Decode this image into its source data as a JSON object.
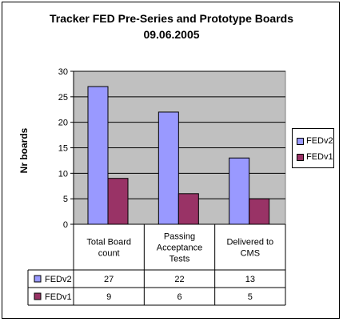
{
  "chart_data": {
    "type": "bar",
    "title": "Tracker FED Pre-Series and Prototype Boards",
    "subtitle": "09.06.2005",
    "ylabel": "Nr boards",
    "categories": [
      [
        "Total Board",
        "count"
      ],
      [
        "Passing",
        "Acceptance",
        "Tests"
      ],
      [
        "Delivered to",
        "CMS"
      ]
    ],
    "ylim": [
      0,
      30
    ],
    "yticks": [
      0,
      5,
      10,
      15,
      20,
      25,
      30
    ],
    "grid": true,
    "legend_position": "right",
    "series": [
      {
        "name": "FEDv2",
        "color": "#9999ff",
        "values": [
          27,
          22,
          13
        ]
      },
      {
        "name": "FEDv1",
        "color": "#993366",
        "values": [
          9,
          6,
          5
        ]
      }
    ],
    "plot_background": "#c0c0c0"
  },
  "legend": {
    "v2": "FEDv2",
    "v1": "FEDv1"
  }
}
